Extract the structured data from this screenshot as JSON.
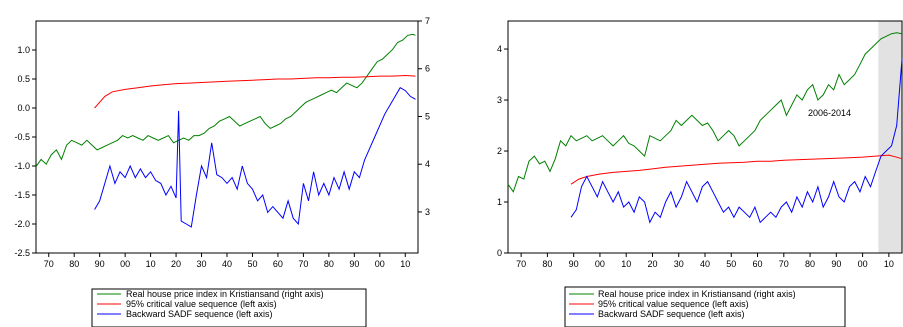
{
  "chart_data": [
    {
      "type": "line",
      "x_ticks": [
        70,
        80,
        90,
        "00",
        10,
        20,
        30,
        40,
        50,
        60,
        70,
        80,
        90,
        "00",
        10
      ],
      "x_tick_years": [
        1870,
        1880,
        1890,
        1900,
        1910,
        1920,
        1930,
        1940,
        1950,
        1960,
        1970,
        1980,
        1990,
        2000,
        2010
      ],
      "xlim": [
        1865,
        2015
      ],
      "left_axis": {
        "ylim": [
          -2.5,
          1.5
        ],
        "ticks": [
          "-2.5",
          "-2.0",
          "-1.5",
          "-1.0",
          "-0.5",
          "0.0",
          "0.5",
          "1.0"
        ],
        "tick_values": [
          -2.5,
          -2.0,
          -1.5,
          -1.0,
          -0.5,
          0.0,
          0.5,
          1.0
        ]
      },
      "right_axis": {
        "ylim": [
          2.14,
          7
        ],
        "ticks": [
          "3",
          "4",
          "5",
          "6",
          "7"
        ],
        "tick_values": [
          3,
          4,
          5,
          6,
          7
        ]
      },
      "grid": false,
      "legend_position": "bottom",
      "legend": [
        {
          "label": "Real house price index in Kristiansand (right axis)",
          "color": "#008000"
        },
        {
          "label": "95% critical value sequence (left axis)",
          "color": "#ff0000"
        },
        {
          "label": "Backward SADF sequence (left axis)",
          "color": "#0000ff"
        }
      ],
      "series": [
        {
          "name": "Real house price index in Kristiansand (right axis)",
          "axis": "right",
          "color": "#008000",
          "x": [
            1865,
            1867,
            1869,
            1871,
            1873,
            1875,
            1877,
            1879,
            1881,
            1883,
            1885,
            1887,
            1889,
            1891,
            1893,
            1895,
            1897,
            1899,
            1901,
            1903,
            1905,
            1907,
            1909,
            1911,
            1913,
            1915,
            1917,
            1919,
            1921,
            1923,
            1925,
            1927,
            1929,
            1931,
            1933,
            1935,
            1937,
            1939,
            1941,
            1943,
            1945,
            1947,
            1949,
            1951,
            1953,
            1955,
            1957,
            1959,
            1961,
            1963,
            1965,
            1967,
            1969,
            1971,
            1973,
            1975,
            1977,
            1979,
            1981,
            1983,
            1985,
            1987,
            1989,
            1991,
            1993,
            1995,
            1997,
            1999,
            2001,
            2003,
            2005,
            2007,
            2009,
            2011,
            2013,
            2014
          ],
          "y": [
            3.95,
            4.1,
            4.0,
            4.2,
            4.3,
            4.1,
            4.4,
            4.5,
            4.45,
            4.4,
            4.5,
            4.4,
            4.3,
            4.35,
            4.4,
            4.45,
            4.5,
            4.6,
            4.55,
            4.6,
            4.55,
            4.5,
            4.6,
            4.55,
            4.5,
            4.55,
            4.6,
            4.45,
            4.5,
            4.55,
            4.5,
            4.6,
            4.6,
            4.65,
            4.75,
            4.8,
            4.9,
            4.95,
            5.0,
            4.9,
            4.8,
            4.85,
            4.9,
            4.95,
            5.0,
            4.85,
            4.75,
            4.8,
            4.85,
            4.95,
            5.0,
            5.1,
            5.2,
            5.3,
            5.35,
            5.4,
            5.45,
            5.5,
            5.55,
            5.5,
            5.6,
            5.7,
            5.65,
            5.6,
            5.7,
            5.85,
            6.0,
            6.15,
            6.2,
            6.3,
            6.4,
            6.55,
            6.6,
            6.7,
            6.72,
            6.7
          ]
        },
        {
          "name": "95% critical value sequence (left axis)",
          "axis": "left",
          "color": "#ff0000",
          "x": [
            1888,
            1890,
            1892,
            1895,
            1900,
            1905,
            1910,
            1915,
            1920,
            1925,
            1930,
            1935,
            1940,
            1945,
            1950,
            1955,
            1960,
            1965,
            1970,
            1975,
            1980,
            1985,
            1990,
            1995,
            2000,
            2005,
            2010,
            2014
          ],
          "y": [
            0.0,
            0.1,
            0.2,
            0.28,
            0.32,
            0.35,
            0.38,
            0.4,
            0.42,
            0.43,
            0.44,
            0.45,
            0.46,
            0.47,
            0.48,
            0.49,
            0.5,
            0.5,
            0.51,
            0.52,
            0.52,
            0.53,
            0.53,
            0.54,
            0.55,
            0.55,
            0.56,
            0.55
          ]
        },
        {
          "name": "Backward SADF sequence (left axis)",
          "axis": "left",
          "color": "#0000ff",
          "x": [
            1888,
            1890,
            1892,
            1894,
            1896,
            1898,
            1900,
            1902,
            1904,
            1906,
            1908,
            1910,
            1912,
            1914,
            1916,
            1918,
            1920,
            1921,
            1922,
            1924,
            1926,
            1928,
            1930,
            1932,
            1934,
            1936,
            1938,
            1940,
            1942,
            1944,
            1946,
            1948,
            1950,
            1952,
            1954,
            1956,
            1958,
            1960,
            1962,
            1964,
            1966,
            1968,
            1970,
            1972,
            1974,
            1976,
            1978,
            1980,
            1982,
            1984,
            1986,
            1988,
            1990,
            1992,
            1994,
            1996,
            1998,
            2000,
            2002,
            2004,
            2006,
            2008,
            2010,
            2012,
            2014
          ],
          "y": [
            -1.75,
            -1.6,
            -1.3,
            -1.0,
            -1.3,
            -1.1,
            -1.2,
            -1.0,
            -1.2,
            -1.05,
            -1.2,
            -1.1,
            -1.25,
            -1.3,
            -1.5,
            -1.35,
            -1.55,
            -0.05,
            -1.95,
            -2.0,
            -2.05,
            -1.5,
            -1.0,
            -1.2,
            -0.6,
            -1.15,
            -1.2,
            -1.3,
            -1.2,
            -1.4,
            -1.0,
            -1.3,
            -1.4,
            -1.6,
            -1.5,
            -1.8,
            -1.7,
            -1.8,
            -1.9,
            -1.6,
            -1.9,
            -2.0,
            -1.3,
            -1.6,
            -1.1,
            -1.5,
            -1.3,
            -1.5,
            -1.2,
            -1.4,
            -1.1,
            -1.4,
            -1.1,
            -1.2,
            -0.9,
            -0.7,
            -0.5,
            -0.3,
            -0.1,
            0.05,
            0.2,
            0.35,
            0.3,
            0.2,
            0.15
          ]
        }
      ]
    },
    {
      "type": "line",
      "x_ticks": [
        70,
        80,
        90,
        "00",
        10,
        20,
        30,
        40,
        50,
        60,
        70,
        80,
        90,
        "00",
        10
      ],
      "x_tick_years": [
        1870,
        1880,
        1890,
        1900,
        1910,
        1920,
        1930,
        1940,
        1950,
        1960,
        1970,
        1980,
        1990,
        2000,
        2010
      ],
      "xlim": [
        1865,
        2015
      ],
      "left_axis": {
        "ylim": [
          0,
          4.55
        ],
        "ticks": [
          "0",
          "1",
          "2",
          "3",
          "4"
        ],
        "tick_values": [
          0,
          1,
          2,
          3,
          4
        ]
      },
      "grid": false,
      "legend_position": "bottom",
      "shaded_period": [
        2006,
        2015
      ],
      "annotation": "2006-2014",
      "legend": [
        {
          "label": "Real house price index in Kristiansand (right axis)",
          "color": "#008000"
        },
        {
          "label": "95% critical value sequence (left axis)",
          "color": "#ff0000"
        },
        {
          "label": "Backward SADF sequence (left axis)",
          "color": "#0000ff"
        }
      ],
      "series": [
        {
          "name": "Real house price index in Kristiansand (right axis)",
          "axis": "left",
          "color": "#008000",
          "x": [
            1865,
            1867,
            1869,
            1871,
            1873,
            1875,
            1877,
            1879,
            1881,
            1883,
            1885,
            1887,
            1889,
            1891,
            1893,
            1895,
            1897,
            1899,
            1901,
            1903,
            1905,
            1907,
            1909,
            1911,
            1913,
            1915,
            1917,
            1919,
            1921,
            1923,
            1925,
            1927,
            1929,
            1931,
            1933,
            1935,
            1937,
            1939,
            1941,
            1943,
            1945,
            1947,
            1949,
            1951,
            1953,
            1955,
            1957,
            1959,
            1961,
            1963,
            1965,
            1967,
            1969,
            1971,
            1973,
            1975,
            1977,
            1979,
            1981,
            1983,
            1985,
            1987,
            1989,
            1991,
            1993,
            1995,
            1997,
            1999,
            2001,
            2003,
            2005,
            2007,
            2009,
            2011,
            2013,
            2015
          ],
          "y": [
            1.35,
            1.2,
            1.5,
            1.45,
            1.8,
            1.9,
            1.75,
            1.8,
            1.6,
            1.85,
            2.2,
            2.1,
            2.3,
            2.2,
            2.25,
            2.3,
            2.2,
            2.25,
            2.3,
            2.2,
            2.1,
            2.2,
            2.3,
            2.15,
            2.1,
            2.0,
            1.9,
            2.3,
            2.25,
            2.2,
            2.3,
            2.4,
            2.6,
            2.5,
            2.6,
            2.7,
            2.6,
            2.5,
            2.55,
            2.4,
            2.2,
            2.3,
            2.4,
            2.3,
            2.1,
            2.2,
            2.3,
            2.4,
            2.6,
            2.7,
            2.8,
            2.9,
            3.0,
            2.7,
            2.9,
            3.1,
            3.0,
            3.2,
            3.3,
            3.0,
            3.1,
            3.3,
            3.2,
            3.5,
            3.3,
            3.4,
            3.5,
            3.7,
            3.9,
            4.0,
            4.1,
            4.2,
            4.25,
            4.3,
            4.32,
            4.3
          ]
        },
        {
          "name": "95% critical value sequence (left axis)",
          "axis": "left",
          "color": "#ff0000",
          "x": [
            1889,
            1892,
            1895,
            1900,
            1905,
            1910,
            1915,
            1920,
            1925,
            1930,
            1935,
            1940,
            1945,
            1950,
            1955,
            1960,
            1965,
            1970,
            1975,
            1980,
            1985,
            1990,
            1995,
            2000,
            2005,
            2010,
            2015
          ],
          "y": [
            1.35,
            1.45,
            1.5,
            1.55,
            1.58,
            1.6,
            1.62,
            1.65,
            1.68,
            1.7,
            1.72,
            1.74,
            1.76,
            1.77,
            1.78,
            1.8,
            1.8,
            1.82,
            1.83,
            1.84,
            1.85,
            1.86,
            1.87,
            1.88,
            1.9,
            1.92,
            1.85
          ]
        },
        {
          "name": "Backward SADF sequence (left axis)",
          "axis": "left",
          "color": "#0000ff",
          "x": [
            1889,
            1891,
            1893,
            1895,
            1897,
            1899,
            1901,
            1903,
            1905,
            1907,
            1909,
            1911,
            1913,
            1915,
            1917,
            1919,
            1921,
            1923,
            1925,
            1927,
            1929,
            1931,
            1933,
            1935,
            1937,
            1939,
            1941,
            1943,
            1945,
            1947,
            1949,
            1951,
            1953,
            1955,
            1957,
            1959,
            1961,
            1963,
            1965,
            1967,
            1969,
            1971,
            1973,
            1975,
            1977,
            1979,
            1981,
            1983,
            1985,
            1987,
            1989,
            1991,
            1993,
            1995,
            1997,
            1999,
            2001,
            2003,
            2005,
            2007,
            2009,
            2011,
            2013,
            2015
          ],
          "y": [
            0.7,
            0.85,
            1.3,
            1.5,
            1.3,
            1.1,
            1.4,
            1.2,
            1.0,
            1.2,
            0.9,
            1.0,
            0.8,
            1.1,
            1.0,
            0.6,
            0.8,
            0.7,
            1.0,
            1.2,
            0.9,
            1.1,
            1.4,
            1.2,
            1.0,
            1.3,
            1.4,
            1.2,
            1.0,
            0.8,
            0.9,
            0.7,
            0.9,
            0.8,
            0.7,
            0.9,
            0.6,
            0.7,
            0.8,
            0.7,
            0.9,
            1.0,
            0.8,
            1.1,
            0.9,
            1.2,
            1.0,
            1.3,
            0.9,
            1.1,
            1.4,
            1.1,
            1.0,
            1.3,
            1.4,
            1.2,
            1.5,
            1.3,
            1.6,
            1.9,
            2.0,
            2.1,
            2.5,
            3.8
          ]
        }
      ]
    }
  ]
}
